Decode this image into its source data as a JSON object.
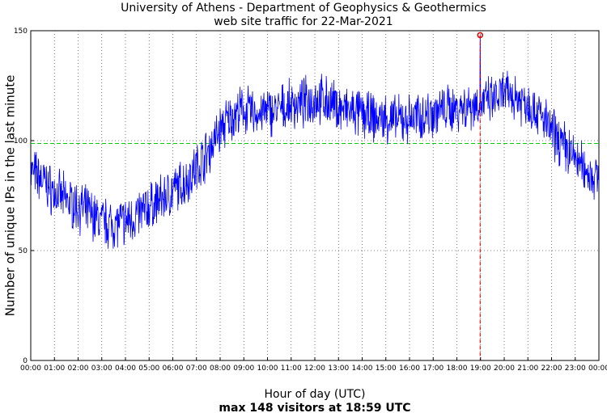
{
  "chart_data": {
    "type": "line",
    "title": "University of Athens - Department of Geophysics & Geothermics",
    "subtitle": "web site traffic for 22-Mar-2021",
    "xlabel": "Hour of day (UTC)",
    "ylabel": "Number of unique IPs in the last minute",
    "note": "max 148 visitors at 18:59 UTC",
    "xlim": [
      0,
      24
    ],
    "ylim": [
      0,
      150
    ],
    "x_tick_labels": [
      "00:00",
      "01:00",
      "02:00",
      "03:00",
      "04:00",
      "05:00",
      "06:00",
      "07:00",
      "08:00",
      "09:00",
      "10:00",
      "11:00",
      "12:00",
      "13:00",
      "14:00",
      "15:00",
      "16:00",
      "17:00",
      "18:00",
      "19:00",
      "20:00",
      "21:00",
      "22:00",
      "23:00",
      "00:00"
    ],
    "y_ticks": [
      0,
      50,
      100,
      150
    ],
    "grid": true,
    "reference_line": {
      "value": 98.7,
      "color": "#00cc00",
      "style": "dashed"
    },
    "max_marker": {
      "time_hours": 18.983,
      "value": 148,
      "color": "#e00000"
    },
    "series_color": "#0000ff",
    "series": [
      {
        "x": [
          0,
          0.5,
          1,
          1.5,
          2,
          2.5,
          3,
          3.5,
          4,
          4.5,
          5,
          5.5,
          6,
          6.5,
          7,
          7.5,
          8,
          8.5,
          9,
          9.5,
          10,
          10.5,
          11,
          11.5,
          12,
          12.5,
          13,
          13.5,
          14,
          14.5,
          15,
          15.5,
          16,
          16.5,
          17,
          17.5,
          18,
          18.5,
          19,
          19.5,
          20,
          20.5,
          21,
          21.5,
          22,
          22.5,
          23,
          23.5,
          24
        ],
        "y": [
          86,
          82,
          76,
          73,
          70,
          67,
          63,
          62,
          63,
          66,
          70,
          73,
          77,
          81,
          88,
          95,
          105,
          111,
          114,
          112,
          113,
          114,
          116,
          117,
          119,
          118,
          115,
          113,
          112,
          110,
          110,
          109,
          110,
          111,
          113,
          114,
          115,
          116,
          117,
          118,
          121,
          120,
          117,
          112,
          104,
          98,
          92,
          86,
          82
        ]
      }
    ]
  }
}
